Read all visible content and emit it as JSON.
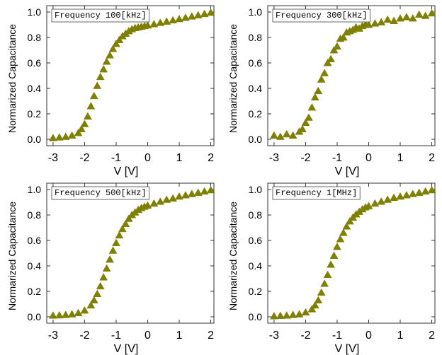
{
  "chart_data": [
    {
      "type": "scatter",
      "title": "",
      "annotation": "Frequency 100[kHz]",
      "xlabel": "V [V]",
      "ylabel": "Normarized Capacitance",
      "xlim": [
        -3.2,
        2.1
      ],
      "ylim": [
        -0.05,
        1.05
      ],
      "xticks": [
        -3,
        -2,
        -1,
        0,
        1,
        2
      ],
      "yticks": [
        0.0,
        0.2,
        0.4,
        0.6,
        0.8,
        1.0
      ],
      "ytick_labels": [
        "0.0",
        "0.2",
        "0.4",
        "0.6",
        "0.8",
        "1.0"
      ],
      "grid": false,
      "marker": "triangle-up",
      "marker_color": "#7f7f00",
      "series": [
        {
          "x": [
            -3.0,
            -2.8,
            -2.6,
            -2.4,
            -2.2,
            -2.1,
            -2.0,
            -1.9,
            -1.8,
            -1.7,
            -1.6,
            -1.5,
            -1.4,
            -1.3,
            -1.2,
            -1.1,
            -1.0,
            -0.9,
            -0.8,
            -0.7,
            -0.6,
            -0.5,
            -0.4,
            -0.3,
            -0.2,
            -0.1,
            0.0,
            0.2,
            0.4,
            0.6,
            0.8,
            1.0,
            1.2,
            1.4,
            1.6,
            1.8,
            2.0
          ],
          "y": [
            0.01,
            0.015,
            0.02,
            0.03,
            0.05,
            0.08,
            0.12,
            0.18,
            0.26,
            0.34,
            0.42,
            0.49,
            0.55,
            0.61,
            0.66,
            0.71,
            0.75,
            0.78,
            0.81,
            0.83,
            0.85,
            0.865,
            0.875,
            0.88,
            0.885,
            0.89,
            0.895,
            0.905,
            0.915,
            0.925,
            0.935,
            0.945,
            0.955,
            0.965,
            0.975,
            0.985,
            0.995
          ]
        }
      ]
    },
    {
      "type": "scatter",
      "title": "",
      "annotation": "Frequency 300[kHz]",
      "xlabel": "V [V]",
      "ylabel": "Normarized Capacitance",
      "xlim": [
        -3.2,
        2.1
      ],
      "ylim": [
        -0.05,
        1.05
      ],
      "xticks": [
        -3,
        -2,
        -1,
        0,
        1,
        2
      ],
      "yticks": [
        0.0,
        0.2,
        0.4,
        0.6,
        0.8,
        1.0
      ],
      "ytick_labels": [
        "0.0",
        "0.2",
        "0.4",
        "0.6",
        "0.8",
        "1.0"
      ],
      "grid": false,
      "marker": "triangle-up",
      "marker_color": "#7f7f00",
      "series": [
        {
          "x": [
            -3.0,
            -2.8,
            -2.6,
            -2.4,
            -2.2,
            -2.1,
            -2.0,
            -1.9,
            -1.8,
            -1.7,
            -1.6,
            -1.5,
            -1.4,
            -1.3,
            -1.2,
            -1.1,
            -1.0,
            -0.9,
            -0.8,
            -0.7,
            -0.6,
            -0.5,
            -0.4,
            -0.3,
            -0.2,
            -0.1,
            0.0,
            0.2,
            0.4,
            0.6,
            0.8,
            1.0,
            1.2,
            1.4,
            1.6,
            1.8,
            2.0
          ],
          "y": [
            0.03,
            0.02,
            0.04,
            0.03,
            0.06,
            0.08,
            0.13,
            0.17,
            0.25,
            0.33,
            0.38,
            0.47,
            0.52,
            0.6,
            0.63,
            0.7,
            0.73,
            0.79,
            0.8,
            0.84,
            0.85,
            0.86,
            0.88,
            0.87,
            0.89,
            0.9,
            0.9,
            0.91,
            0.92,
            0.94,
            0.93,
            0.95,
            0.96,
            0.95,
            0.98,
            0.97,
            0.99
          ]
        }
      ]
    },
    {
      "type": "scatter",
      "title": "",
      "annotation": "Frequency 500[kHz]",
      "xlabel": "V [V]",
      "ylabel": "Normarized Capacitance",
      "xlim": [
        -3.2,
        2.1
      ],
      "ylim": [
        -0.05,
        1.05
      ],
      "xticks": [
        -3,
        -2,
        -1,
        0,
        1,
        2
      ],
      "yticks": [
        0.0,
        0.2,
        0.4,
        0.6,
        0.8,
        1.0
      ],
      "ytick_labels": [
        "0.0",
        "0.2",
        "0.4",
        "0.6",
        "0.8",
        "1.0"
      ],
      "grid": false,
      "marker": "triangle-up",
      "marker_color": "#7f7f00",
      "series": [
        {
          "x": [
            -3.0,
            -2.8,
            -2.6,
            -2.4,
            -2.2,
            -2.0,
            -1.8,
            -1.7,
            -1.6,
            -1.5,
            -1.4,
            -1.3,
            -1.2,
            -1.1,
            -1.0,
            -0.9,
            -0.8,
            -0.7,
            -0.6,
            -0.5,
            -0.4,
            -0.3,
            -0.2,
            -0.1,
            0.0,
            0.2,
            0.4,
            0.6,
            0.8,
            1.0,
            1.2,
            1.4,
            1.6,
            1.8,
            2.0
          ],
          "y": [
            0.01,
            0.012,
            0.015,
            0.02,
            0.03,
            0.05,
            0.09,
            0.13,
            0.18,
            0.24,
            0.31,
            0.38,
            0.45,
            0.52,
            0.58,
            0.64,
            0.69,
            0.73,
            0.77,
            0.8,
            0.82,
            0.84,
            0.855,
            0.865,
            0.875,
            0.89,
            0.905,
            0.92,
            0.93,
            0.945,
            0.955,
            0.965,
            0.975,
            0.985,
            0.995
          ]
        }
      ]
    },
    {
      "type": "scatter",
      "title": "",
      "annotation": "Frequency 1[MHz]",
      "xlabel": "V [V]",
      "ylabel": "Normarized Capacitance",
      "xlim": [
        -3.2,
        2.1
      ],
      "ylim": [
        -0.05,
        1.05
      ],
      "xticks": [
        -3,
        -2,
        -1,
        0,
        1,
        2
      ],
      "yticks": [
        0.0,
        0.2,
        0.4,
        0.6,
        0.8,
        1.0
      ],
      "ytick_labels": [
        "0.0",
        "0.2",
        "0.4",
        "0.6",
        "0.8",
        "1.0"
      ],
      "grid": false,
      "marker": "triangle-up",
      "marker_color": "#7f7f00",
      "series": [
        {
          "x": [
            -3.0,
            -2.8,
            -2.6,
            -2.4,
            -2.2,
            -2.0,
            -1.8,
            -1.7,
            -1.6,
            -1.5,
            -1.4,
            -1.3,
            -1.2,
            -1.1,
            -1.0,
            -0.9,
            -0.8,
            -0.7,
            -0.6,
            -0.5,
            -0.4,
            -0.3,
            -0.2,
            -0.1,
            0.0,
            0.2,
            0.4,
            0.6,
            0.8,
            1.0,
            1.2,
            1.4,
            1.6,
            1.8,
            2.0
          ],
          "y": [
            0.005,
            0.008,
            0.01,
            0.015,
            0.02,
            0.035,
            0.06,
            0.09,
            0.13,
            0.19,
            0.26,
            0.33,
            0.41,
            0.48,
            0.55,
            0.61,
            0.66,
            0.71,
            0.75,
            0.78,
            0.805,
            0.825,
            0.845,
            0.86,
            0.87,
            0.89,
            0.905,
            0.92,
            0.935,
            0.945,
            0.955,
            0.965,
            0.975,
            0.985,
            0.995
          ]
        }
      ]
    }
  ]
}
